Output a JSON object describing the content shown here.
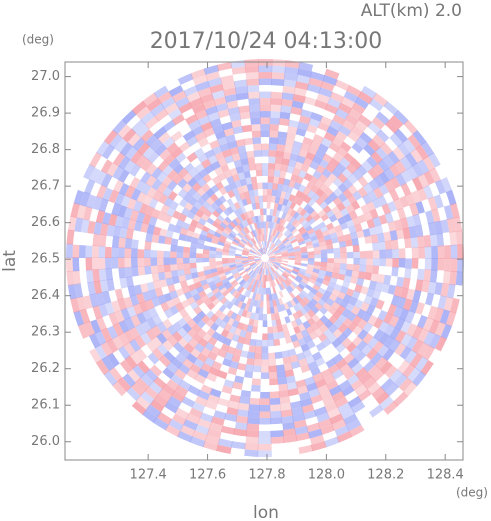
{
  "chart_data": {
    "type": "radar-ppi",
    "title": "2017/10/24 04:13:00",
    "subtitle": "ALT(km) 2.0",
    "x_label": "lon",
    "y_label": "lat",
    "x_unit": "(deg)",
    "y_unit": "(deg)",
    "xlim": [
      127.12,
      128.46
    ],
    "ylim": [
      25.95,
      27.04
    ],
    "xticks": [
      127.4,
      127.6,
      127.8,
      {
        "value": 128,
        "label": "128.0"
      },
      128.2,
      128.4
    ],
    "yticks": [
      {
        "value": 26,
        "label": "26.0"
      },
      26.1,
      26.2,
      26.3,
      26.4,
      26.5,
      26.6,
      26.7,
      26.8,
      26.9,
      {
        "value": 27,
        "label": "27.0"
      }
    ]
  }
}
